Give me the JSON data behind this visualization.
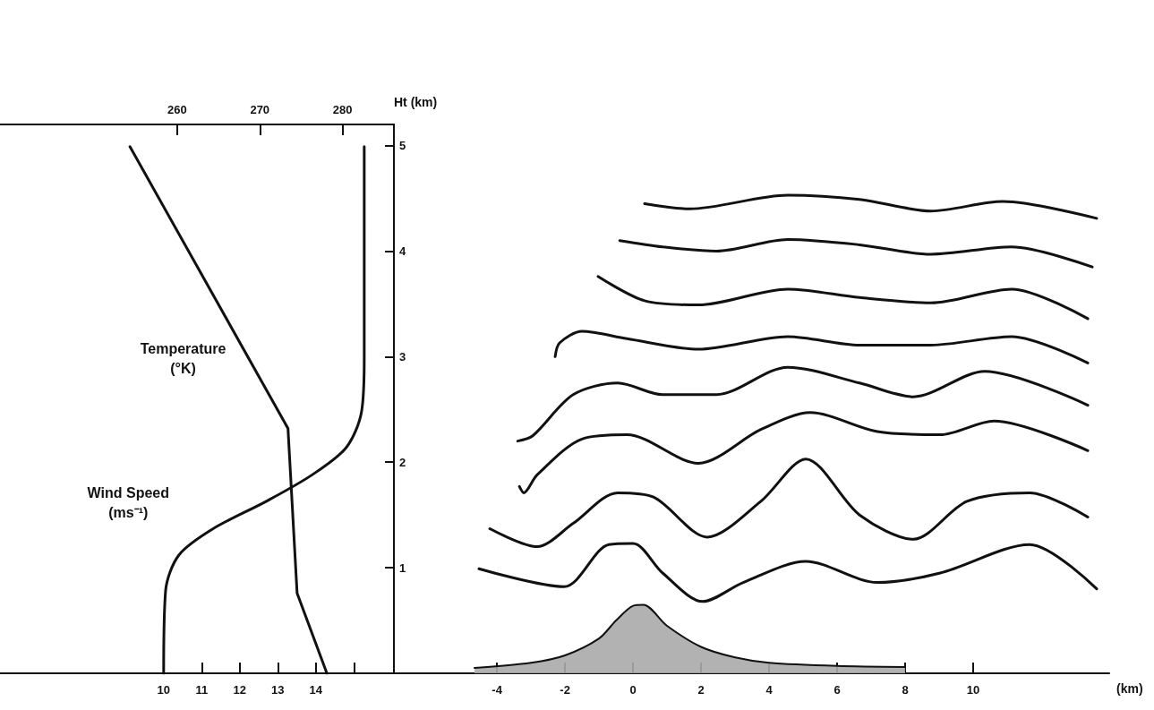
{
  "chart_data": [
    {
      "type": "line",
      "xlabel": null,
      "ylabel": "Ht (km)",
      "xlim": [
        5.7,
        16.05
      ],
      "xticks": [
        10,
        11,
        12,
        13,
        14,
        {
          "value": 15,
          "label": null
        }
      ],
      "x2lim": [
        238.6,
        286.2
      ],
      "x2ticks": [
        260,
        270,
        280
      ],
      "ylim": [
        0,
        5.2
      ],
      "yticks": [
        1,
        2,
        3,
        4,
        5
      ],
      "marker": "none",
      "line_style": "solid",
      "series": [
        {
          "name": "Temperature (°K)",
          "axis": "x2",
          "color": "#111111",
          "x": [
            254.3,
            273.4,
            274.5,
            278.1
          ],
          "values": [
            4.99,
            2.32,
            0.76,
            0
          ]
        },
        {
          "name": "Wind Speed (ms⁻¹)",
          "color": "#111111",
          "x": [
            10,
            10.05,
            10.4,
            11.3,
            12.7,
            13.9,
            14.8,
            15.2,
            15.27,
            15.27
          ],
          "values": [
            0,
            0.78,
            1.12,
            1.37,
            1.63,
            1.88,
            2.14,
            2.48,
            2.99,
            4.99
          ]
        }
      ]
    },
    {
      "type": "line",
      "xlabel": "(km)",
      "xlim": [
        -7.03,
        14
      ],
      "xticks": [
        -4,
        -2,
        0,
        2,
        4,
        6,
        8,
        10
      ],
      "ylim": [
        0,
        5.2
      ],
      "yticks": [
        1,
        2,
        3,
        4,
        5
      ],
      "tick_labels": "x",
      "marker": "none",
      "line_style": "solid",
      "series": [
        {
          "type": "area",
          "color": "#aaaaaa",
          "x": [
            -4.66,
            -3,
            -2,
            -1,
            -0.5,
            0,
            0.3,
            1,
            2,
            3,
            4,
            6,
            8
          ],
          "values": [
            0.05,
            0.1,
            0.17,
            0.33,
            0.5,
            0.64,
            0.65,
            0.45,
            0.25,
            0.15,
            0.1,
            0.07,
            0.06
          ]
        },
        {
          "color": "#111111",
          "x": [
            -4.53,
            -2.03,
            -0.71,
            0,
            0.87,
            2.05,
            3.24,
            5.08,
            7.18,
            9.03,
            11.66,
            13.63
          ],
          "values": [
            0.99,
            0.82,
            1.22,
            1.23,
            0.95,
            0.68,
            0.86,
            1.06,
            0.86,
            0.95,
            1.22,
            0.8
          ]
        },
        {
          "color": "#111111",
          "x": [
            -4.21,
            -2.82,
            -1.76,
            -0.45,
            0.6,
            2.18,
            3.76,
            5.08,
            6.66,
            8.24,
            9.82,
            11.66,
            13.37
          ],
          "values": [
            1.37,
            1.2,
            1.42,
            1.71,
            1.67,
            1.29,
            1.63,
            2.03,
            1.5,
            1.27,
            1.63,
            1.71,
            1.48
          ]
        },
        {
          "color": "#111111",
          "x": [
            -3.34,
            -3.21,
            -2.82,
            -1.5,
            -0.18,
            1.92,
            3.76,
            5.21,
            7.18,
            9.03,
            10.61,
            13.37
          ],
          "values": [
            1.77,
            1.71,
            1.88,
            2.22,
            2.26,
            1.99,
            2.31,
            2.47,
            2.29,
            2.26,
            2.39,
            2.11
          ]
        },
        {
          "color": "#111111",
          "x": [
            -3.39,
            -2.95,
            -1.76,
            -0.45,
            0.87,
            2.45,
            4.55,
            6.66,
            8.24,
            10.34,
            13.37
          ],
          "values": [
            2.2,
            2.25,
            2.64,
            2.75,
            2.64,
            2.64,
            2.9,
            2.75,
            2.62,
            2.86,
            2.54
          ]
        },
        {
          "color": "#111111",
          "x": [
            -2.29,
            -2.16,
            -1.5,
            -0.18,
            1.92,
            4.55,
            6.66,
            8.76,
            11.13,
            13.37
          ],
          "values": [
            3.0,
            3.13,
            3.24,
            3.17,
            3.07,
            3.19,
            3.11,
            3.11,
            3.19,
            2.94
          ]
        },
        {
          "color": "#111111",
          "x": [
            -1.03,
            0.34,
            1.92,
            4.55,
            6.66,
            8.76,
            11.13,
            13.37
          ],
          "values": [
            3.76,
            3.53,
            3.49,
            3.64,
            3.56,
            3.51,
            3.64,
            3.36
          ]
        },
        {
          "color": "#111111",
          "x": [
            -0.39,
            0.87,
            2.45,
            4.55,
            6.66,
            8.76,
            11.13,
            13.5
          ],
          "values": [
            4.1,
            4.04,
            4.0,
            4.11,
            4.06,
            3.97,
            4.04,
            3.85
          ]
        },
        {
          "color": "#111111",
          "x": [
            0.34,
            1.66,
            4.55,
            6.66,
            8.76,
            10.87,
            13.63
          ],
          "values": [
            4.45,
            4.4,
            4.53,
            4.49,
            4.38,
            4.47,
            4.31
          ]
        }
      ]
    }
  ]
}
